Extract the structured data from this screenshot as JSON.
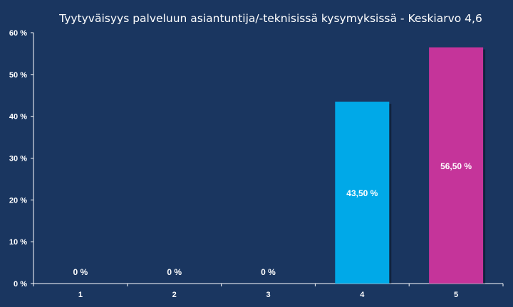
{
  "chart_data": {
    "type": "bar",
    "title": "Tyytyväisyys palveluun asiantuntija/-teknisissä  kysymyksissä - Keskiarvo 4,6",
    "categories": [
      "1",
      "2",
      "3",
      "4",
      "5"
    ],
    "values": [
      0,
      0,
      0,
      43.5,
      56.5
    ],
    "data_labels": [
      "0 %",
      "0 %",
      "0 %",
      "43,50 %",
      "56,50 %"
    ],
    "bar_colors": [
      "#00a9e8",
      "#00a9e8",
      "#00a9e8",
      "#00a9e8",
      "#c5349a"
    ],
    "y_ticks": [
      "0 %",
      "10 %",
      "20 %",
      "30 %",
      "40 %",
      "50 %",
      "60 %"
    ],
    "ylim": [
      0,
      60
    ],
    "xlabel": "",
    "ylabel": "",
    "grid": false,
    "legend": "none",
    "background": "#1a3660",
    "axis_color": "#ffffff"
  }
}
